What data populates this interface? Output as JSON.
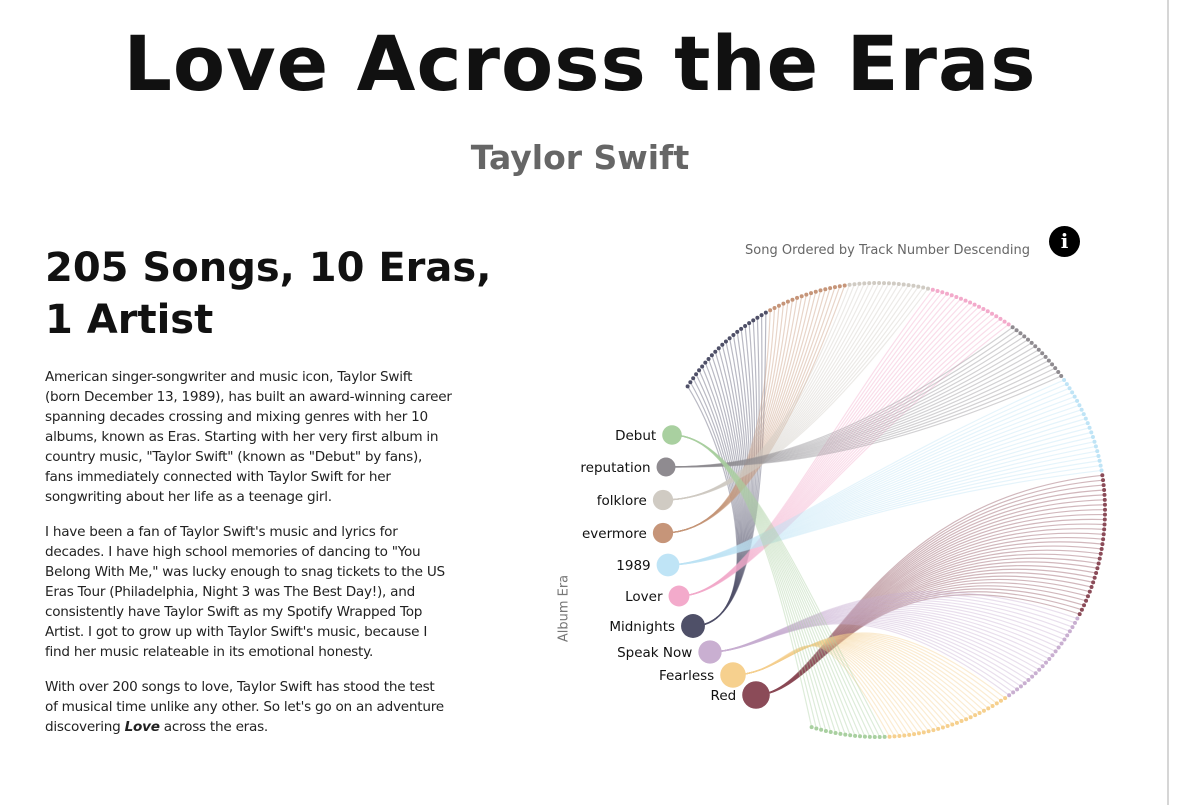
{
  "header": {
    "title": "Love Across the Eras",
    "subtitle": "Taylor Swift"
  },
  "article": {
    "heading_lines": [
      "205 Songs, 10 Eras,",
      "1 Artist"
    ],
    "paragraph1": [
      "American singer-songwriter and music icon, Taylor Swift",
      "(born December 13, 1989), has built an award-winning career",
      "spanning decades crossing and mixing genres with her 10",
      "albums, known as Eras. Starting with her very first album in",
      "country music, \"Taylor Swift\" (known as \"Debut\" by fans),",
      "fans immediately connected with Taylor Swift for her",
      "songwriting about her life as a teenage girl."
    ],
    "paragraph2": [
      "I have been a fan of Taylor Swift's music and lyrics for",
      "decades. I have high school memories of dancing to \"You",
      "Belong With Me,\" was lucky enough to snag tickets to the US",
      "Eras Tour (Philadelphia, Night 3 was The Best Day!), and",
      "consistently have Taylor Swift as my Spotify Wrapped Top",
      "Artist. I got to grow up with Taylor Swift's music, because I",
      "find her music relateable in its emotional honesty."
    ],
    "paragraph3": {
      "line1": "With over 200 songs to love, Taylor Swift has stood the test",
      "line2": "of musical time unlike any other. So let's go on an adventure",
      "line3_before": "discovering ",
      "line3_emphasis": "Love",
      "line3_after": " across the eras."
    }
  },
  "chart": {
    "info_icon": "info-circle-icon",
    "info_glyph": "i"
  },
  "chart_data": {
    "type": "radial-link",
    "title": "Song Ordered by Track Number Descending",
    "ylabel": "Album Era",
    "eras": [
      {
        "name": "Debut",
        "color": "#a9d0a0",
        "songs": 16
      },
      {
        "name": "reputation",
        "color": "#8f8b90",
        "songs": 15
      },
      {
        "name": "folklore",
        "color": "#d0cbc3",
        "songs": 17
      },
      {
        "name": "evermore",
        "color": "#c69579",
        "songs": 17
      },
      {
        "name": "1989",
        "color": "#bfe4f6",
        "songs": 21
      },
      {
        "name": "Lover",
        "color": "#f3aacb",
        "songs": 18
      },
      {
        "name": "Midnights",
        "color": "#4f5068",
        "songs": 23
      },
      {
        "name": "Speak Now",
        "color": "#c9afd1",
        "songs": 22
      },
      {
        "name": "Fearless",
        "color": "#f6d08e",
        "songs": 26
      },
      {
        "name": "Red",
        "color": "#8b4b58",
        "songs": 30
      }
    ],
    "arc_order": [
      "Midnights",
      "evermore",
      "folklore",
      "Lover",
      "reputation",
      "1989",
      "Red",
      "Speak Now",
      "Fearless",
      "Debut"
    ]
  }
}
